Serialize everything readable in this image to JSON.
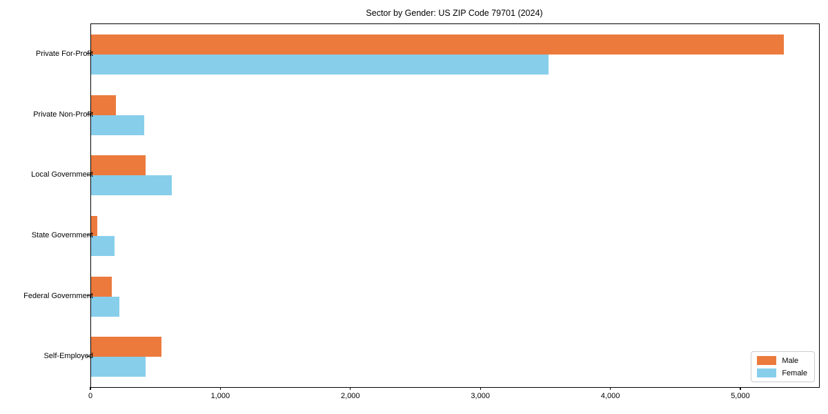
{
  "title": "Sector by Gender: US ZIP Code 79701 (2024)",
  "chart_data": {
    "type": "bar",
    "orientation": "horizontal",
    "title": "Sector by Gender: US ZIP Code 79701 (2024)",
    "categories": [
      "Private For-Profit",
      "Private Non-Profit",
      "Local Government",
      "State Government",
      "Federal Government",
      "Self-Employed"
    ],
    "series": [
      {
        "name": "Male",
        "color": "#EC7A3D",
        "values": [
          5330,
          190,
          420,
          50,
          160,
          540
        ]
      },
      {
        "name": "Female",
        "color": "#87CEEB",
        "values": [
          3520,
          410,
          620,
          180,
          220,
          420
        ]
      }
    ],
    "xlim": [
      0,
      5600
    ],
    "x_ticks": [
      {
        "value": 0,
        "label": "0"
      },
      {
        "value": 1000,
        "label": "1,000"
      },
      {
        "value": 2000,
        "label": "2,000"
      },
      {
        "value": 3000,
        "label": "3,000"
      },
      {
        "value": 4000,
        "label": "4,000"
      },
      {
        "value": 5000,
        "label": "5,000"
      }
    ],
    "xlabel": "",
    "ylabel": "",
    "grid": false,
    "legend_position": "lower right"
  }
}
